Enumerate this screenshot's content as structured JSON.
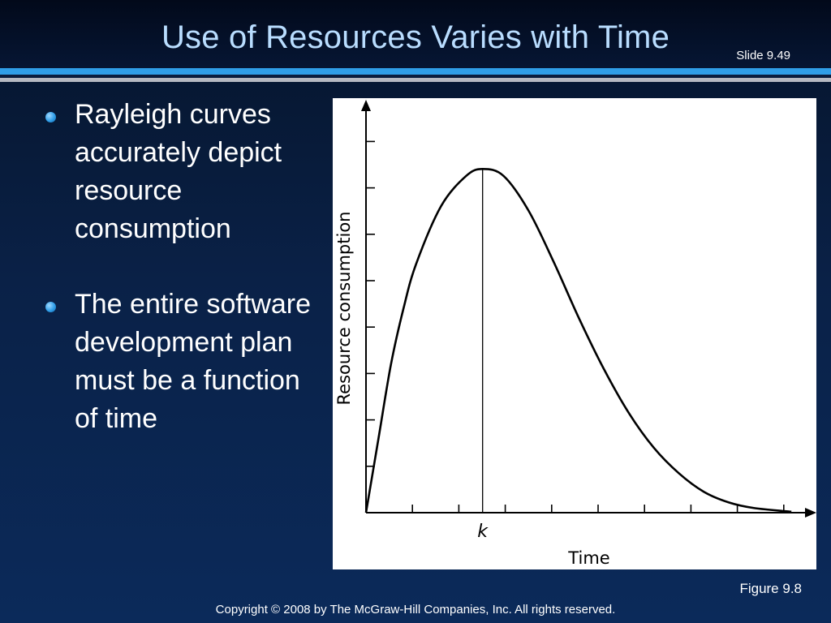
{
  "slide": {
    "title": "Use of Resources Varies with Time",
    "slide_number": "Slide 9.49",
    "figure_label": "Figure 9.8",
    "copyright": "Copyright © 2008 by The McGraw-Hill Companies, Inc.  All rights reserved."
  },
  "bullets": [
    {
      "text": "Rayleigh curves accurately depict resource consumption"
    },
    {
      "text": "The entire software development plan must be a function of time"
    }
  ],
  "colors": {
    "title": "#b9ddff",
    "accent_rule": "#2f9ee8",
    "bullet_dot": "#2f9ee8",
    "background": "#0a2147"
  },
  "chart_data": {
    "type": "line",
    "title": "",
    "xlabel": "Time",
    "ylabel": "Resource consumption",
    "x_tick_labels": [
      {
        "x": 2.33,
        "label": "k"
      }
    ],
    "x_tick_count": 9,
    "y_tick_count": 8,
    "xlim": [
      0,
      9
    ],
    "ylim": [
      0,
      8
    ],
    "peak": {
      "x": 2.33,
      "y": 7.4
    },
    "series": [
      {
        "values": [
          {
            "x": 0.0,
            "y": 0.0
          },
          {
            "x": 0.25,
            "y": 1.6
          },
          {
            "x": 0.5,
            "y": 3.2
          },
          {
            "x": 0.75,
            "y": 4.4
          },
          {
            "x": 1.0,
            "y": 5.35
          },
          {
            "x": 1.5,
            "y": 6.6
          },
          {
            "x": 2.0,
            "y": 7.25
          },
          {
            "x": 2.33,
            "y": 7.4
          },
          {
            "x": 2.75,
            "y": 7.25
          },
          {
            "x": 3.25,
            "y": 6.5
          },
          {
            "x": 3.75,
            "y": 5.4
          },
          {
            "x": 4.25,
            "y": 4.2
          },
          {
            "x": 4.75,
            "y": 3.1
          },
          {
            "x": 5.25,
            "y": 2.15
          },
          {
            "x": 5.75,
            "y": 1.4
          },
          {
            "x": 6.25,
            "y": 0.85
          },
          {
            "x": 6.75,
            "y": 0.45
          },
          {
            "x": 7.25,
            "y": 0.22
          },
          {
            "x": 7.75,
            "y": 0.1
          },
          {
            "x": 8.5,
            "y": 0.02
          }
        ]
      }
    ],
    "grid": false,
    "legend": "none"
  }
}
